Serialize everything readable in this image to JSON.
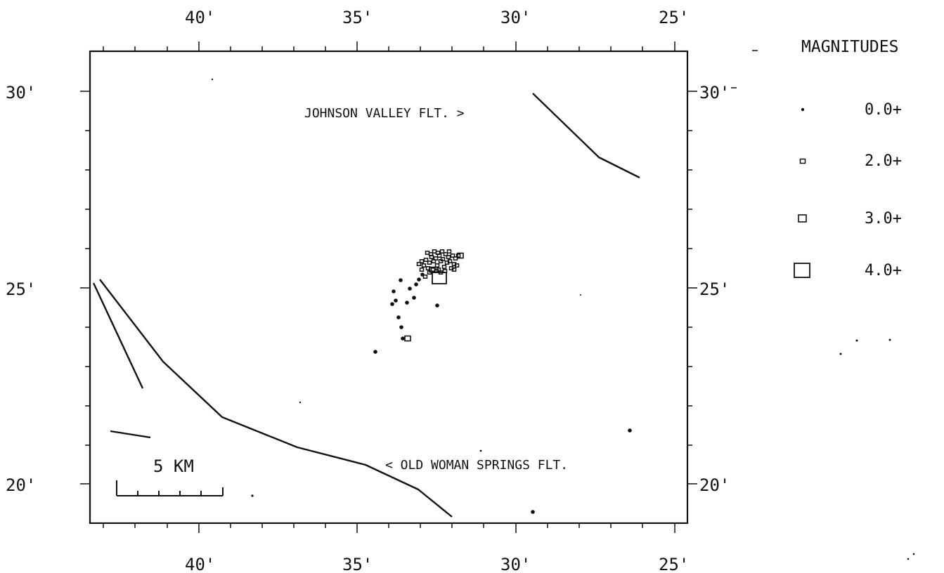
{
  "top_axis_labels": [
    "40'",
    "35'",
    "30'",
    "25'"
  ],
  "bottom_axis_labels": [
    "40'",
    "35'",
    "30'",
    "25'"
  ],
  "left_axis_labels": [
    "30'",
    "25'",
    "20'"
  ],
  "right_axis_labels": [
    "30'",
    "25'",
    "20'"
  ],
  "fault_labels": {
    "johnson_valley": "JOHNSON VALLEY FLT. >",
    "old_woman_springs": "< OLD WOMAN SPRINGS FLT."
  },
  "scale_bar": {
    "label": "5 KM"
  },
  "legend": {
    "title": "MAGNITUDES",
    "items": [
      {
        "label": "0.0+",
        "symbol": "dot"
      },
      {
        "label": "2.0+",
        "symbol": "small-square"
      },
      {
        "label": "3.0+",
        "symbol": "medium-square"
      },
      {
        "label": "4.0+",
        "symbol": "large-square"
      }
    ]
  },
  "colors": {
    "ink": "#111111",
    "background": "#ffffff"
  }
}
